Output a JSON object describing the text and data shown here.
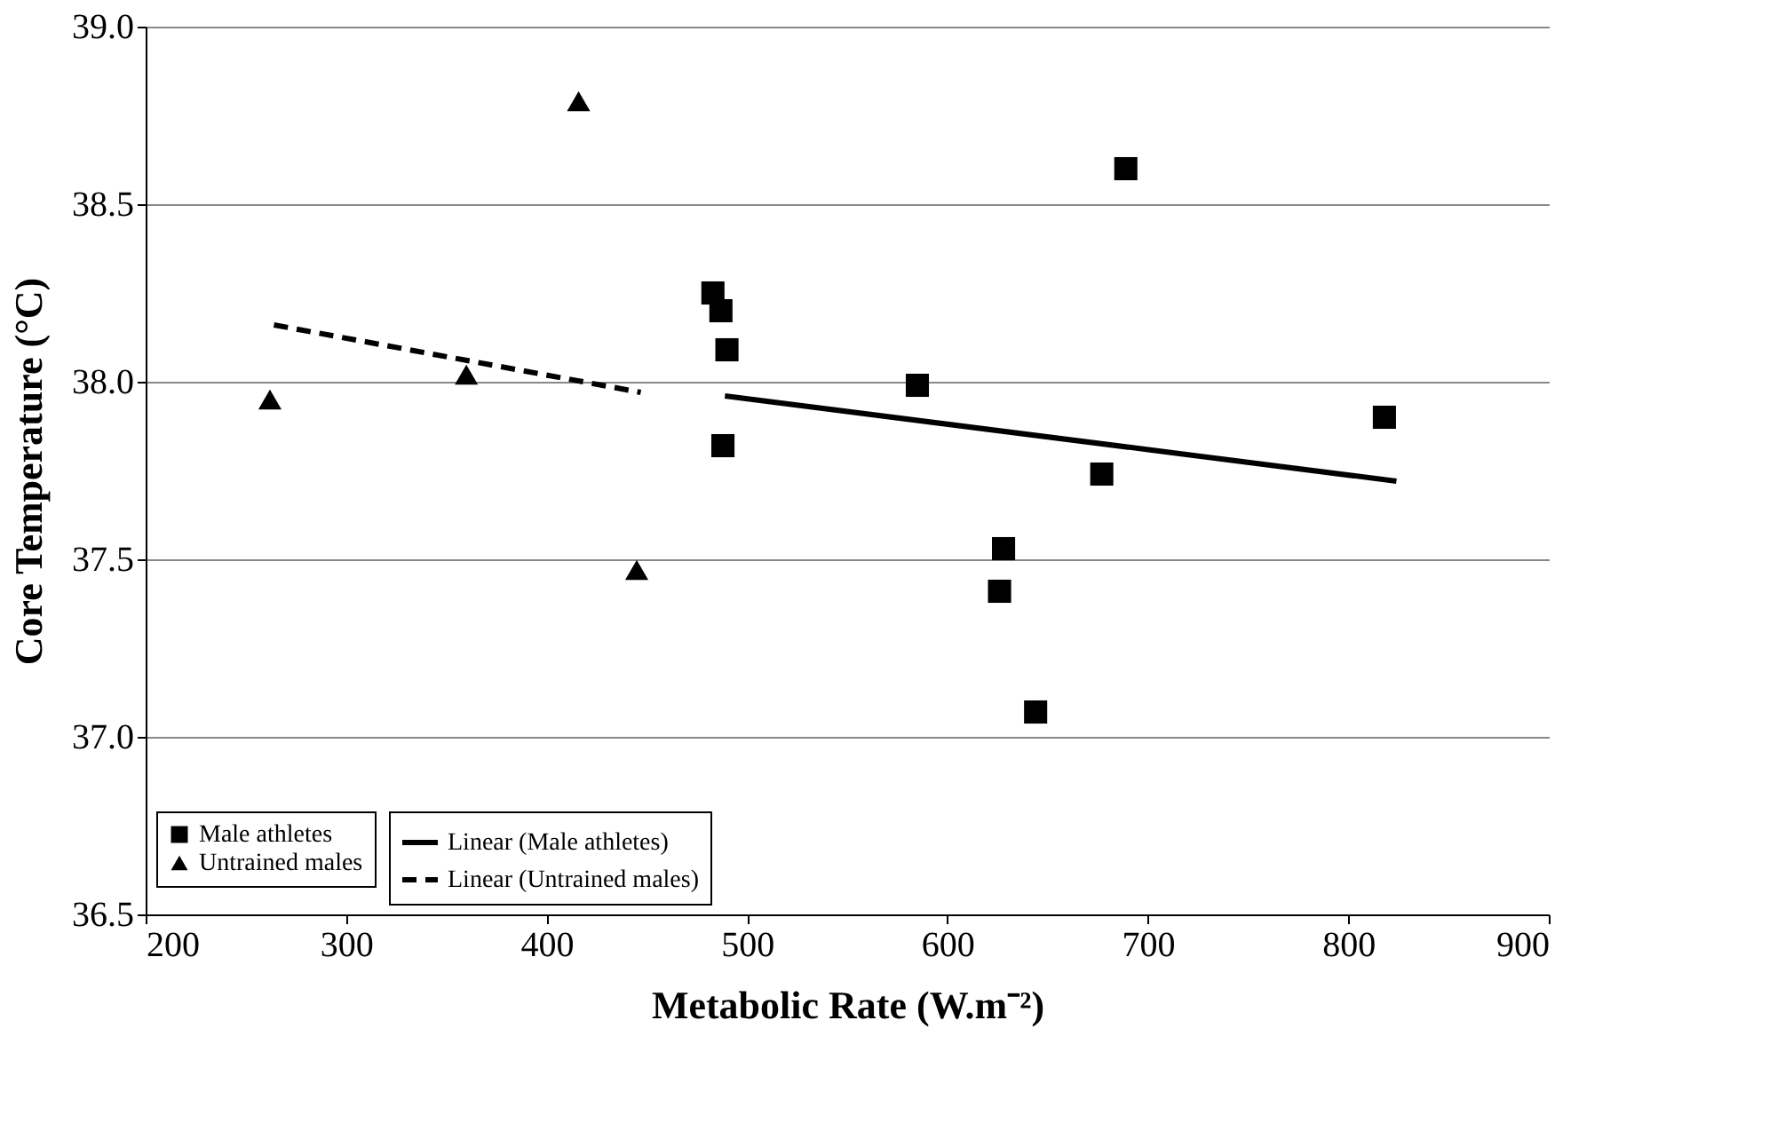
{
  "chart_data": {
    "type": "scatter",
    "xlabel": "Metabolic Rate (W.m⁻²)",
    "ylabel": "Core Temperature (°C)",
    "xlim": [
      200,
      900
    ],
    "xticks": [
      200,
      300,
      400,
      500,
      600,
      700,
      800,
      900
    ],
    "ylim": [
      36.5,
      39.0
    ],
    "yticks": [
      {
        "value": 36.5,
        "label": "36.5"
      },
      {
        "value": 37.0,
        "label": "37.0"
      },
      {
        "value": 37.5,
        "label": "37.5"
      },
      {
        "value": 38.0,
        "label": "38.0"
      },
      {
        "value": 38.5,
        "label": "38.5"
      },
      {
        "value": 39.0,
        "label": "39.0"
      }
    ],
    "grid": "y",
    "legend": "bottom left",
    "series": [
      {
        "name": "Male athletes",
        "marker": "square",
        "color": "#000000",
        "x": [
          483,
          487,
          490,
          488,
          585,
          689,
          677,
          626,
          628,
          644,
          818
        ],
        "values": [
          38.25,
          38.2,
          38.09,
          37.82,
          37.99,
          38.6,
          37.74,
          37.41,
          37.53,
          37.07,
          37.9
        ]
      },
      {
        "name": "Untrained males",
        "marker": "triangle",
        "color": "#000000",
        "x": [
          262,
          360,
          416,
          445
        ],
        "values": [
          37.95,
          38.02,
          38.79,
          37.47
        ]
      },
      {
        "name": "Linear (Male athletes)",
        "type": "line",
        "line_style": "solid",
        "color": "#000000",
        "x": [
          489,
          824
        ],
        "values": [
          37.96,
          37.72
        ]
      },
      {
        "name": "Linear (Untrained males)",
        "type": "line",
        "line_style": "dashed",
        "color": "#000000",
        "x": [
          264,
          447
        ],
        "values": [
          38.16,
          37.97
        ]
      }
    ]
  }
}
